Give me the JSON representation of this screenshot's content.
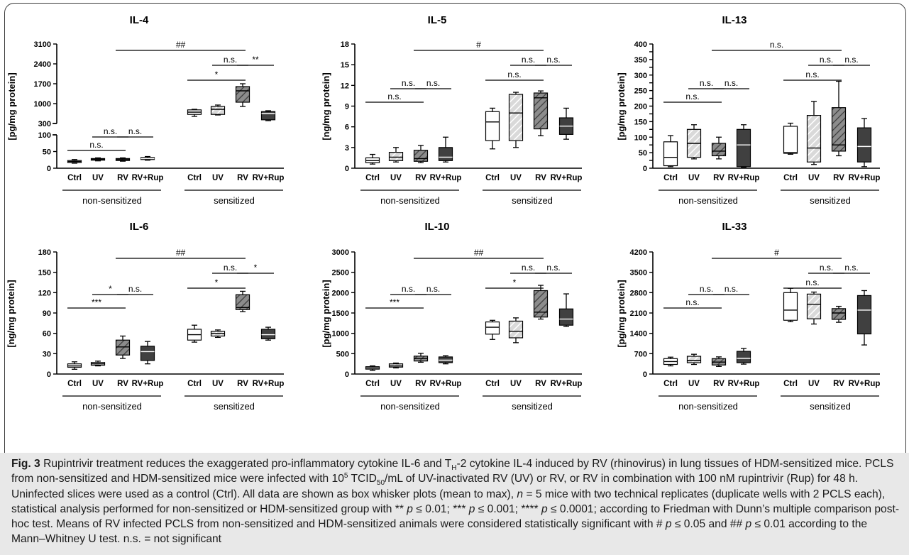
{
  "chart_data": [
    {
      "type": "box",
      "title": "IL-4",
      "ylabel": "[pg/mg protein]",
      "ylim": [
        0,
        3100
      ],
      "axis_break": {
        "lower": [
          0,
          100
        ],
        "upper": [
          300,
          3100
        ]
      },
      "yticks": [
        "0",
        "50",
        "100",
        "300",
        "1000",
        "1700",
        "2400",
        "3100"
      ],
      "categories": [
        "Ctrl",
        "UV",
        "RV",
        "RV+Rup",
        "Ctrl",
        "UV",
        "RV",
        "RV+Rup"
      ],
      "groups": [
        "non-sensitized",
        "sensitized"
      ],
      "boxes": [
        {
          "min": 15,
          "q1": 17,
          "median": 20,
          "q3": 23,
          "max": 26
        },
        {
          "min": 22,
          "q1": 24,
          "median": 27,
          "q3": 29,
          "max": 31
        },
        {
          "min": 21,
          "q1": 23,
          "median": 26,
          "q3": 29,
          "max": 31
        },
        {
          "min": 24,
          "q1": 26,
          "median": 29,
          "q3": 32,
          "max": 35
        },
        {
          "min": 550,
          "q1": 620,
          "median": 700,
          "q3": 780,
          "max": 800
        },
        {
          "min": 600,
          "q1": 620,
          "median": 800,
          "q3": 900,
          "max": 950
        },
        {
          "min": 900,
          "q1": 1050,
          "median": 1450,
          "q3": 1600,
          "max": 1700
        },
        {
          "min": 400,
          "q1": 430,
          "median": 650,
          "q3": 720,
          "max": 750
        }
      ],
      "annotations": [
        {
          "from": 2,
          "to": 6,
          "level": 1,
          "text": "##"
        },
        {
          "from": 4,
          "to": 6,
          "level": 2,
          "text": "*"
        },
        {
          "from": 5,
          "to": 6,
          "level": 3,
          "text": "n.s."
        },
        {
          "from": 6,
          "to": 7,
          "level": 3,
          "text": "**"
        },
        {
          "from": 0,
          "to": 2,
          "level": 2,
          "text": "n.s."
        },
        {
          "from": 1,
          "to": 2,
          "level": 3,
          "text": "n.s."
        },
        {
          "from": 2,
          "to": 3,
          "level": 3,
          "text": "n.s."
        }
      ]
    },
    {
      "type": "box",
      "title": "IL-5",
      "ylabel": "[ng/mg protein]",
      "ylim": [
        0,
        18
      ],
      "yticks": [
        "0",
        "3",
        "6",
        "9",
        "12",
        "15",
        "18"
      ],
      "categories": [
        "Ctrl",
        "UV",
        "RV",
        "RV+Rup",
        "Ctrl",
        "UV",
        "RV",
        "RV+Rup"
      ],
      "groups": [
        "non-sensitized",
        "sensitized"
      ],
      "boxes": [
        {
          "min": 0.6,
          "q1": 0.8,
          "median": 1.1,
          "q3": 1.5,
          "max": 2.0
        },
        {
          "min": 0.9,
          "q1": 1.1,
          "median": 1.6,
          "q3": 2.3,
          "max": 3.0
        },
        {
          "min": 0.8,
          "q1": 1.0,
          "median": 1.4,
          "q3": 2.6,
          "max": 3.3
        },
        {
          "min": 0.9,
          "q1": 1.1,
          "median": 1.6,
          "q3": 3.0,
          "max": 4.5
        },
        {
          "min": 2.8,
          "q1": 4.0,
          "median": 6.7,
          "q3": 8.2,
          "max": 8.7
        },
        {
          "min": 3.0,
          "q1": 4.0,
          "median": 8.0,
          "q3": 10.7,
          "max": 11.0
        },
        {
          "min": 4.7,
          "q1": 5.7,
          "median": 10.2,
          "q3": 10.9,
          "max": 11.2
        },
        {
          "min": 4.2,
          "q1": 4.9,
          "median": 6.1,
          "q3": 7.3,
          "max": 8.7
        }
      ],
      "annotations": [
        {
          "from": 2,
          "to": 6,
          "level": 1,
          "text": "#"
        },
        {
          "from": 4,
          "to": 6,
          "level": 2,
          "text": "n.s."
        },
        {
          "from": 5,
          "to": 6,
          "level": 3,
          "text": "n.s."
        },
        {
          "from": 6,
          "to": 7,
          "level": 3,
          "text": "n.s."
        },
        {
          "from": 0,
          "to": 2,
          "level": 2,
          "text": "n.s."
        },
        {
          "from": 1,
          "to": 2,
          "level": 3,
          "text": "n.s."
        },
        {
          "from": 2,
          "to": 3,
          "level": 3,
          "text": "n.s."
        }
      ]
    },
    {
      "type": "box",
      "title": "IL-13",
      "ylabel": "[pg/mg protein]",
      "ylim": [
        0,
        400
      ],
      "yticks": [
        "0",
        "25",
        "50",
        "75",
        "100",
        "125",
        "150",
        "175",
        "200",
        "225",
        "250",
        "275",
        "300",
        "325",
        "350",
        "375",
        "400"
      ],
      "categories": [
        "Ctrl",
        "UV",
        "RV",
        "RV+Rup",
        "Ctrl",
        "UV",
        "RV",
        "RV+Rup"
      ],
      "groups": [
        "non-sensitized",
        "sensitized"
      ],
      "boxes": [
        {
          "min": 5,
          "q1": 8,
          "median": 35,
          "q3": 85,
          "max": 105
        },
        {
          "min": 30,
          "q1": 35,
          "median": 80,
          "q3": 125,
          "max": 140
        },
        {
          "min": 30,
          "q1": 40,
          "median": 55,
          "q3": 80,
          "max": 100
        },
        {
          "min": 3,
          "q1": 5,
          "median": 75,
          "q3": 125,
          "max": 140
        },
        {
          "min": 45,
          "q1": 48,
          "median": 50,
          "q3": 135,
          "max": 145
        },
        {
          "min": 12,
          "q1": 20,
          "median": 65,
          "q3": 170,
          "max": 215
        },
        {
          "min": 40,
          "q1": 55,
          "median": 75,
          "q3": 195,
          "max": 280
        },
        {
          "min": 5,
          "q1": 20,
          "median": 70,
          "q3": 130,
          "max": 160
        }
      ],
      "annotations": [
        {
          "from": 2,
          "to": 6,
          "level": 1,
          "text": "n.s."
        },
        {
          "from": 4,
          "to": 6,
          "level": 2,
          "text": "n.s."
        },
        {
          "from": 5,
          "to": 6,
          "level": 3,
          "text": "n.s."
        },
        {
          "from": 6,
          "to": 7,
          "level": 3,
          "text": "n.s."
        },
        {
          "from": 0,
          "to": 2,
          "level": 2,
          "text": "n.s."
        },
        {
          "from": 1,
          "to": 2,
          "level": 3,
          "text": "n.s."
        },
        {
          "from": 2,
          "to": 3,
          "level": 3,
          "text": "n.s."
        }
      ]
    },
    {
      "type": "box",
      "title": "IL-6",
      "ylabel": "[ng/mg protein]",
      "ylim": [
        0,
        180
      ],
      "yticks": [
        "0",
        "30",
        "60",
        "90",
        "120",
        "150",
        "180"
      ],
      "categories": [
        "Ctrl",
        "UV",
        "RV",
        "RV+Rup",
        "Ctrl",
        "UV",
        "RV",
        "RV+Rup"
      ],
      "groups": [
        "non-sensitized",
        "sensitized"
      ],
      "boxes": [
        {
          "min": 7,
          "q1": 10,
          "median": 12,
          "q3": 15,
          "max": 18
        },
        {
          "min": 12,
          "q1": 13,
          "median": 15,
          "q3": 17,
          "max": 19
        },
        {
          "min": 23,
          "q1": 28,
          "median": 40,
          "q3": 50,
          "max": 56
        },
        {
          "min": 15,
          "q1": 20,
          "median": 33,
          "q3": 41,
          "max": 48
        },
        {
          "min": 47,
          "q1": 50,
          "median": 58,
          "q3": 66,
          "max": 72
        },
        {
          "min": 54,
          "q1": 56,
          "median": 60,
          "q3": 63,
          "max": 65
        },
        {
          "min": 92,
          "q1": 95,
          "median": 98,
          "q3": 117,
          "max": 122
        },
        {
          "min": 50,
          "q1": 52,
          "median": 58,
          "q3": 66,
          "max": 69
        }
      ],
      "annotations": [
        {
          "from": 2,
          "to": 6,
          "level": 1,
          "text": "##"
        },
        {
          "from": 4,
          "to": 6,
          "level": 2,
          "text": "*"
        },
        {
          "from": 5,
          "to": 6,
          "level": 3,
          "text": "n.s."
        },
        {
          "from": 6,
          "to": 7,
          "level": 3,
          "text": "*"
        },
        {
          "from": 0,
          "to": 2,
          "level": 2,
          "text": "***"
        },
        {
          "from": 1,
          "to": 2,
          "level": 3,
          "text": "*"
        },
        {
          "from": 2,
          "to": 3,
          "level": 3,
          "text": "n.s."
        }
      ]
    },
    {
      "type": "box",
      "title": "IL-10",
      "ylabel": "[pg/mg protein]",
      "ylim": [
        0,
        3000
      ],
      "yticks": [
        "0",
        "500",
        "1000",
        "1500",
        "2000",
        "2500",
        "3000"
      ],
      "categories": [
        "Ctrl",
        "UV",
        "RV",
        "RV+Rup",
        "Ctrl",
        "UV",
        "RV",
        "RV+Rup"
      ],
      "groups": [
        "non-sensitized",
        "sensitized"
      ],
      "boxes": [
        {
          "min": 90,
          "q1": 120,
          "median": 150,
          "q3": 180,
          "max": 200
        },
        {
          "min": 150,
          "q1": 170,
          "median": 200,
          "q3": 250,
          "max": 270
        },
        {
          "min": 290,
          "q1": 320,
          "median": 380,
          "q3": 440,
          "max": 510
        },
        {
          "min": 250,
          "q1": 280,
          "median": 340,
          "q3": 420,
          "max": 450
        },
        {
          "min": 850,
          "q1": 980,
          "median": 1150,
          "q3": 1280,
          "max": 1320
        },
        {
          "min": 770,
          "q1": 890,
          "median": 1050,
          "q3": 1300,
          "max": 1380
        },
        {
          "min": 1350,
          "q1": 1400,
          "median": 1520,
          "q3": 2050,
          "max": 2180
        },
        {
          "min": 1170,
          "q1": 1200,
          "median": 1350,
          "q3": 1600,
          "max": 1970
        }
      ],
      "annotations": [
        {
          "from": 2,
          "to": 6,
          "level": 1,
          "text": "##"
        },
        {
          "from": 4,
          "to": 6,
          "level": 2,
          "text": "*"
        },
        {
          "from": 5,
          "to": 6,
          "level": 3,
          "text": "n.s."
        },
        {
          "from": 6,
          "to": 7,
          "level": 3,
          "text": "n.s."
        },
        {
          "from": 0,
          "to": 2,
          "level": 2,
          "text": "***"
        },
        {
          "from": 1,
          "to": 2,
          "level": 3,
          "text": "n.s."
        },
        {
          "from": 2,
          "to": 3,
          "level": 3,
          "text": "n.s."
        }
      ]
    },
    {
      "type": "box",
      "title": "IL-33",
      "ylabel": "[pg/mg protein]",
      "ylim": [
        0,
        4200
      ],
      "yticks": [
        "0",
        "700",
        "1400",
        "2100",
        "2800",
        "3500",
        "4200"
      ],
      "categories": [
        "Ctrl",
        "UV",
        "RV",
        "RV+Rup",
        "Ctrl",
        "UV",
        "RV",
        "RV+Rup"
      ],
      "groups": [
        "non-sensitized",
        "sensitized"
      ],
      "boxes": [
        {
          "min": 280,
          "q1": 330,
          "median": 430,
          "q3": 530,
          "max": 580
        },
        {
          "min": 330,
          "q1": 390,
          "median": 470,
          "q3": 610,
          "max": 680
        },
        {
          "min": 260,
          "q1": 310,
          "median": 410,
          "q3": 530,
          "max": 590
        },
        {
          "min": 340,
          "q1": 390,
          "median": 540,
          "q3": 780,
          "max": 880
        },
        {
          "min": 1800,
          "q1": 1850,
          "median": 2200,
          "q3": 2800,
          "max": 2950
        },
        {
          "min": 1720,
          "q1": 1900,
          "median": 2400,
          "q3": 2750,
          "max": 2820
        },
        {
          "min": 1780,
          "q1": 1880,
          "median": 2100,
          "q3": 2250,
          "max": 2330
        },
        {
          "min": 1000,
          "q1": 1380,
          "median": 2200,
          "q3": 2700,
          "max": 2870
        }
      ],
      "annotations": [
        {
          "from": 2,
          "to": 6,
          "level": 1,
          "text": "#"
        },
        {
          "from": 4,
          "to": 6,
          "level": 2,
          "text": "n.s."
        },
        {
          "from": 5,
          "to": 6,
          "level": 3,
          "text": "n.s."
        },
        {
          "from": 6,
          "to": 7,
          "level": 3,
          "text": "n.s."
        },
        {
          "from": 0,
          "to": 2,
          "level": 2,
          "text": "n.s."
        },
        {
          "from": 1,
          "to": 2,
          "level": 3,
          "text": "n.s."
        },
        {
          "from": 2,
          "to": 3,
          "level": 3,
          "text": "n.s."
        }
      ]
    }
  ],
  "fills": {
    "ctrl": "#ffffff",
    "uv": "#d9d9d9",
    "rv": "#8c8c8c",
    "rvrup": "#404040"
  },
  "caption": {
    "label": "Fig. 3",
    "t1": " Rupintrivir treatment reduces the exaggerated pro-inflammatory cytokine IL-6 and T",
    "sub1": "H",
    "t2": "-2 cytokine IL-4 induced by RV (rhinovirus) in lung tissues of HDM-sensitized mice. PCLS from non-sensitized and HDM-sensitized mice were infected with 10",
    "sup1": "5",
    "t3": " TCID",
    "sub2": "50",
    "t4": "/mL of UV-inactivated RV (UV) or RV, or RV in combination with 100 nM rupintrivir (Rup) for 48 h. Uninfected slices were used as a control (Ctrl). All data are shown as box whisker plots (mean to max), ",
    "n_symbol": "n",
    "t5": " = 5 mice with two technical replicates (duplicate wells with 2 PCLS each), statistical analysis performed for non-sensitized or HDM-sensitized group with ** ",
    "p1": "p",
    "t6": " ≤ 0.01; *** ",
    "p2": "p",
    "t7": " ≤ 0.001; **** ",
    "p3": "p",
    "t8": " ≤ 0.0001; according to Friedman with Dunn’s multiple comparison post-hoc test. Means of RV infected PCLS from non-sensitized and HDM-sensitized animals were considered statistically significant with # ",
    "p4": "p",
    "t9": " ≤ 0.05 and ## ",
    "p5": "p",
    "t10": " ≤ 0.01 according to the Mann–Whitney U test. n.s. = not significant"
  }
}
